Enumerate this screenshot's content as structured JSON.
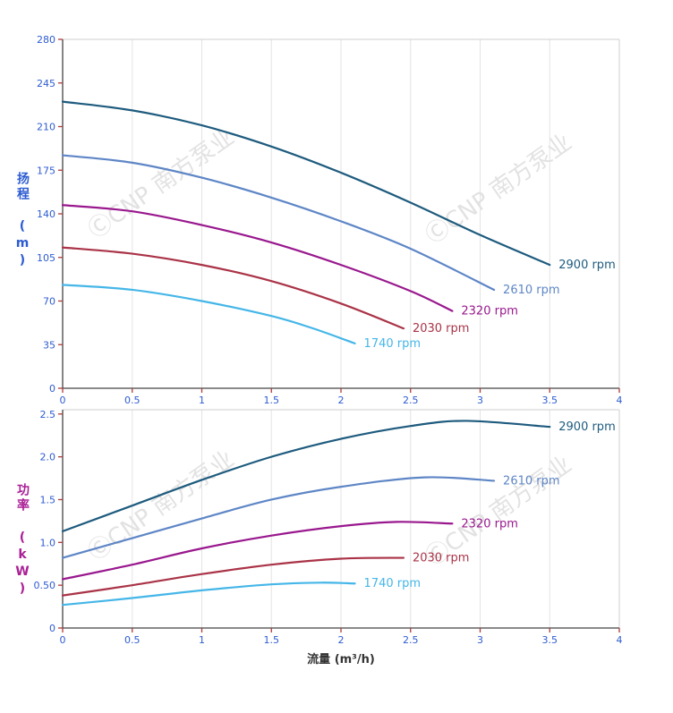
{
  "watermark": {
    "text": "ⒸCNP 南方泵业",
    "color": "#dcdcdc"
  },
  "colors": {
    "grid": "#e3e3e3",
    "border": "#cfcfcf",
    "axis": "#444444",
    "tick": "#b03a3a",
    "tick_label": "#2d5bd1",
    "xlabel_color": "#333333"
  },
  "chart_data": [
    {
      "id": "head",
      "type": "line",
      "title": "",
      "ylabel": "扬程 (m)",
      "ylabel_color": "#2d5bd1",
      "xlabel": "",
      "xlim": [
        0,
        4
      ],
      "ylim": [
        0,
        280
      ],
      "x_tick_values": [
        0,
        0.5,
        1,
        1.5,
        2,
        2.5,
        3,
        3.5,
        4
      ],
      "x_tick_labels": [
        "0",
        "0.5",
        "1",
        "1.5",
        "2",
        "2.5",
        "3",
        "3.5",
        "4"
      ],
      "y_tick_values": [
        0,
        35,
        70,
        105,
        140,
        175,
        210,
        245,
        280
      ],
      "y_tick_labels": [
        "0",
        "35",
        "70",
        "105",
        "140",
        "175",
        "210",
        "245",
        "280"
      ],
      "legend_position": "end-of-curve",
      "grid": "vertical-only",
      "series": [
        {
          "name": "2900 rpm",
          "color": "#1e5b7e",
          "points": [
            [
              0,
              230
            ],
            [
              0.5,
              223
            ],
            [
              1,
              211
            ],
            [
              1.5,
              194
            ],
            [
              2,
              173
            ],
            [
              2.5,
              149
            ],
            [
              3,
              123
            ],
            [
              3.5,
              99
            ]
          ]
        },
        {
          "name": "2610 rpm",
          "color": "#5e86c6",
          "points": [
            [
              0,
              187
            ],
            [
              0.5,
              181
            ],
            [
              1,
              169
            ],
            [
              1.5,
              153
            ],
            [
              2,
              134
            ],
            [
              2.5,
              112
            ],
            [
              3.1,
              79
            ]
          ]
        },
        {
          "name": "2320 rpm",
          "color": "#99188e",
          "points": [
            [
              0,
              147
            ],
            [
              0.5,
              142
            ],
            [
              1,
              131
            ],
            [
              1.5,
              117
            ],
            [
              2,
              99
            ],
            [
              2.5,
              78
            ],
            [
              2.8,
              62
            ]
          ]
        },
        {
          "name": "2030 rpm",
          "color": "#aa3347",
          "points": [
            [
              0,
              113
            ],
            [
              0.5,
              108
            ],
            [
              1,
              99
            ],
            [
              1.5,
              86
            ],
            [
              2,
              68
            ],
            [
              2.45,
              48
            ]
          ]
        },
        {
          "name": "1740 rpm",
          "color": "#45b6e8",
          "points": [
            [
              0,
              83
            ],
            [
              0.5,
              79
            ],
            [
              1,
              70
            ],
            [
              1.5,
              58
            ],
            [
              1.8,
              48
            ],
            [
              2.1,
              36
            ]
          ]
        }
      ]
    },
    {
      "id": "power",
      "type": "line",
      "title": "",
      "ylabel": "功率 (kW)",
      "ylabel_color": "#aa1f96",
      "xlabel": "流量 (m³/h)",
      "xlim": [
        0,
        4
      ],
      "ylim": [
        0,
        2.55
      ],
      "x_tick_values": [
        0,
        0.5,
        1,
        1.5,
        2,
        2.5,
        3,
        3.5,
        4
      ],
      "x_tick_labels": [
        "0",
        "0.5",
        "1",
        "1.5",
        "2",
        "2.5",
        "3",
        "3.5",
        "4"
      ],
      "y_tick_values": [
        0,
        0.5,
        1,
        1.5,
        2,
        2.5
      ],
      "y_tick_labels": [
        "0",
        "0.50",
        "1.0",
        "1.5",
        "2.0",
        "2.5"
      ],
      "legend_position": "end-of-curve",
      "grid": "vertical-only",
      "series": [
        {
          "name": "2900 rpm",
          "color": "#1e5b7e",
          "points": [
            [
              0,
              1.13
            ],
            [
              0.5,
              1.43
            ],
            [
              1,
              1.73
            ],
            [
              1.5,
              2.0
            ],
            [
              2,
              2.21
            ],
            [
              2.5,
              2.36
            ],
            [
              2.9,
              2.42
            ],
            [
              3.5,
              2.35
            ]
          ]
        },
        {
          "name": "2610 rpm",
          "color": "#5e86c6",
          "points": [
            [
              0,
              0.82
            ],
            [
              0.5,
              1.05
            ],
            [
              1,
              1.28
            ],
            [
              1.5,
              1.5
            ],
            [
              2,
              1.65
            ],
            [
              2.6,
              1.76
            ],
            [
              3.1,
              1.72
            ]
          ]
        },
        {
          "name": "2320 rpm",
          "color": "#99188e",
          "points": [
            [
              0,
              0.57
            ],
            [
              0.5,
              0.74
            ],
            [
              1,
              0.93
            ],
            [
              1.5,
              1.08
            ],
            [
              2,
              1.19
            ],
            [
              2.4,
              1.24
            ],
            [
              2.8,
              1.22
            ]
          ]
        },
        {
          "name": "2030 rpm",
          "color": "#aa3347",
          "points": [
            [
              0,
              0.38
            ],
            [
              0.5,
              0.5
            ],
            [
              1,
              0.63
            ],
            [
              1.5,
              0.74
            ],
            [
              2,
              0.81
            ],
            [
              2.45,
              0.82
            ]
          ]
        },
        {
          "name": "1740 rpm",
          "color": "#45b6e8",
          "points": [
            [
              0,
              0.27
            ],
            [
              0.5,
              0.35
            ],
            [
              1,
              0.44
            ],
            [
              1.5,
              0.51
            ],
            [
              1.85,
              0.53
            ],
            [
              2.1,
              0.52
            ]
          ]
        }
      ]
    }
  ]
}
